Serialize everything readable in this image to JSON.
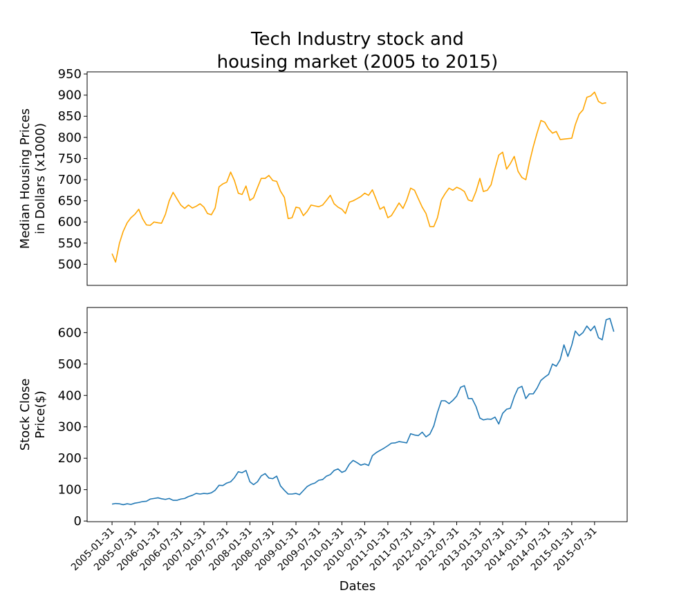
{
  "chart_data": [
    {
      "type": "line",
      "title": "Tech Industry stock and\nhousing market (2005 to 2015)",
      "ylabel": "Median Housing Prices\nin Dollars (x1000)",
      "xlabel": "",
      "ylim": [
        450,
        955
      ],
      "yticks": [
        500,
        550,
        600,
        650,
        700,
        750,
        800,
        850,
        900,
        950
      ],
      "grid": false,
      "series": [
        {
          "color": "#ffa500",
          "values": [
            525,
            505,
            550,
            578,
            598,
            610,
            618,
            630,
            608,
            593,
            592,
            600,
            598,
            597,
            618,
            650,
            670,
            655,
            640,
            632,
            640,
            633,
            637,
            643,
            635,
            620,
            617,
            633,
            683,
            690,
            694,
            718,
            698,
            668,
            665,
            685,
            651,
            657,
            681,
            703,
            703,
            710,
            698,
            696,
            673,
            658,
            608,
            610,
            635,
            633,
            615,
            625,
            640,
            638,
            636,
            640,
            651,
            663,
            643,
            635,
            630,
            620,
            647,
            650,
            655,
            660,
            668,
            663,
            676,
            653,
            630,
            636,
            610,
            615,
            630,
            645,
            632,
            652,
            680,
            675,
            655,
            635,
            620,
            589,
            589,
            610,
            652,
            667,
            680,
            675,
            682,
            678,
            672,
            652,
            649,
            672,
            703,
            672,
            675,
            688,
            725,
            758,
            765,
            725,
            738,
            755,
            720,
            705,
            700,
            740,
            778,
            810,
            840,
            836,
            820,
            810,
            814,
            795,
            796,
            797,
            798,
            830,
            855,
            865,
            895,
            898,
            907,
            885,
            880,
            882
          ]
        }
      ]
    },
    {
      "type": "line",
      "title": "",
      "ylabel": "Stock Close\nPrice($)",
      "xlabel": "Dates",
      "ylim": [
        -2,
        680
      ],
      "yticks": [
        0,
        100,
        200,
        300,
        400,
        500,
        600
      ],
      "grid": false,
      "x_start": "2005-01-31",
      "x_end": "2015-09-30",
      "xticks": [
        "2005-01-31",
        "2005-07-31",
        "2006-01-31",
        "2006-07-31",
        "2007-01-31",
        "2007-07-31",
        "2008-01-31",
        "2008-07-31",
        "2009-01-31",
        "2009-07-31",
        "2010-01-31",
        "2010-07-31",
        "2011-01-31",
        "2011-07-31",
        "2012-01-31",
        "2012-07-31",
        "2013-01-31",
        "2013-07-31",
        "2014-01-31",
        "2014-07-31",
        "2015-01-31",
        "2015-07-31"
      ],
      "series": [
        {
          "color": "#1f77b4",
          "values": [
            54,
            56,
            55,
            52,
            55,
            53,
            57,
            59,
            62,
            63,
            70,
            72,
            74,
            71,
            69,
            72,
            66,
            66,
            70,
            72,
            78,
            82,
            88,
            86,
            88,
            87,
            90,
            98,
            114,
            113,
            121,
            125,
            138,
            157,
            154,
            161,
            125,
            116,
            125,
            144,
            151,
            137,
            135,
            143,
            112,
            98,
            86,
            86,
            88,
            84,
            97,
            110,
            117,
            121,
            130,
            132,
            143,
            148,
            161,
            166,
            155,
            160,
            181,
            193,
            186,
            178,
            182,
            177,
            208,
            218,
            225,
            232,
            240,
            248,
            249,
            253,
            251,
            249,
            278,
            274,
            272,
            283,
            268,
            277,
            303,
            346,
            383,
            383,
            374,
            384,
            398,
            426,
            431,
            390,
            390,
            365,
            328,
            322,
            325,
            324,
            331,
            309,
            343,
            356,
            359,
            396,
            423,
            429,
            390,
            405,
            405,
            423,
            448,
            458,
            467,
            500,
            493,
            514,
            561,
            524,
            560,
            605,
            590,
            600,
            621,
            606,
            621,
            584,
            577,
            641,
            645,
            603
          ]
        }
      ]
    }
  ]
}
